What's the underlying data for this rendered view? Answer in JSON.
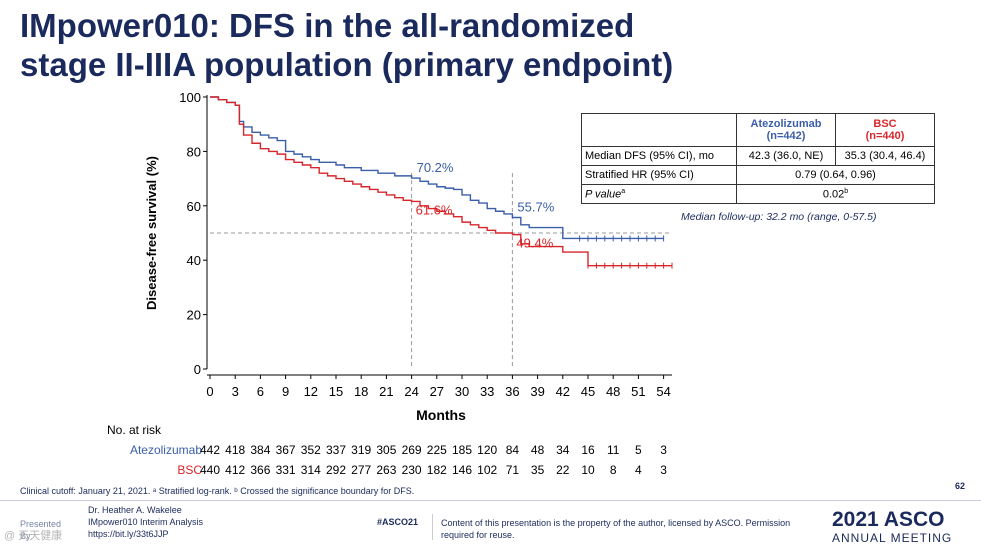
{
  "title": {
    "line1": "IMpower010: DFS in the all-randomized",
    "line2": "stage II-IIIA population (primary endpoint)"
  },
  "chart_data": {
    "type": "line",
    "xlabel": "Months",
    "ylabel": "Disease-free survival (%)",
    "xlim": [
      0,
      55
    ],
    "ylim": [
      0,
      100
    ],
    "x_ticks": [
      0,
      3,
      6,
      9,
      12,
      15,
      18,
      21,
      24,
      27,
      30,
      33,
      36,
      39,
      42,
      45,
      48,
      51,
      54
    ],
    "y_ticks": [
      0,
      20,
      40,
      60,
      80,
      100
    ],
    "reference_line_y": 50,
    "reference_lines_x": [
      24,
      36
    ],
    "colors": {
      "atezolizumab": "#3b5ea9",
      "bsc": "#d7262b",
      "grid": "#999999"
    },
    "series": [
      {
        "name": "Atezolizumab",
        "x": [
          0,
          1,
          2,
          3,
          3.5,
          4,
          5,
          6,
          7,
          8,
          9,
          10,
          11,
          12,
          13,
          14,
          15,
          16,
          17,
          18,
          19,
          20,
          21,
          22,
          23,
          24,
          25,
          26,
          27,
          28,
          29,
          30,
          31,
          32,
          33,
          34,
          35,
          36,
          37,
          38,
          39,
          40,
          41,
          42,
          43,
          44,
          45,
          46,
          47,
          48,
          49,
          50,
          51,
          52,
          53,
          54
        ],
        "y": [
          100,
          99,
          98,
          97,
          91,
          89,
          87,
          86,
          85,
          84,
          80,
          79,
          78,
          77,
          76,
          76,
          75,
          74,
          74,
          73,
          73,
          72,
          72,
          71,
          71,
          70.2,
          69,
          68,
          67,
          66.5,
          66,
          64,
          62,
          61,
          59,
          58,
          57,
          55.7,
          53,
          52,
          52,
          52,
          52,
          48,
          48,
          48,
          48,
          48,
          48,
          48,
          48,
          48,
          48,
          48,
          48,
          48
        ]
      },
      {
        "name": "BSC",
        "x": [
          0,
          1,
          2,
          3,
          3.5,
          4,
          5,
          6,
          7,
          8,
          9,
          10,
          11,
          12,
          13,
          14,
          15,
          16,
          17,
          18,
          19,
          20,
          21,
          22,
          23,
          24,
          25,
          26,
          27,
          28,
          29,
          30,
          31,
          32,
          33,
          34,
          35,
          36,
          37,
          38,
          39,
          40,
          41,
          42,
          43,
          44,
          45,
          46,
          47,
          48,
          49,
          50,
          51,
          52,
          53,
          54,
          55
        ],
        "y": [
          100,
          99,
          98,
          97,
          90,
          86,
          83,
          81,
          80,
          79,
          77,
          76,
          75,
          74,
          72,
          71,
          70,
          69,
          68,
          67,
          66,
          65,
          64,
          63,
          62,
          61.6,
          60,
          59,
          58,
          57,
          56,
          54,
          53,
          52,
          51,
          50,
          50,
          49.4,
          46,
          45,
          45,
          45,
          45,
          43,
          43,
          43,
          38,
          38,
          38,
          38,
          38,
          38,
          38,
          38,
          38,
          38,
          38
        ]
      }
    ],
    "annotations": [
      {
        "text": "70.2%",
        "series": "Atezolizumab",
        "x": 24,
        "y": 70.2
      },
      {
        "text": "55.7%",
        "series": "Atezolizumab",
        "x": 36,
        "y": 55.7
      },
      {
        "text": "61.6%",
        "series": "BSC",
        "x": 24,
        "y": 61.6
      },
      {
        "text": "49.4%",
        "series": "BSC",
        "x": 36,
        "y": 49.4
      }
    ]
  },
  "table": {
    "col_atezo": "Atezolizumab",
    "col_atezo_n": "(n=442)",
    "col_bsc": "BSC",
    "col_bsc_n": "(n=440)",
    "row1_label": "Median DFS (95% CI), mo",
    "row1_atezo": "42.3 (36.0, NE)",
    "row1_bsc": "35.3 (30.4, 46.4)",
    "row2_label": "Stratified HR (95% CI)",
    "row2_value": "0.79 (0.64, 0.96)",
    "row3_label_main": "P value",
    "row3_label_sup": "a",
    "row3_value_main": "0.02",
    "row3_value_sup": "b"
  },
  "followup": "Median follow-up: 32.2 mo (range, 0-57.5)",
  "at_risk": {
    "title": "No. at risk",
    "atezo_label": "Atezolizumab",
    "atezo_values": [
      "442",
      "418",
      "384",
      "367",
      "352",
      "337",
      "319",
      "305",
      "269",
      "225",
      "185",
      "120",
      "84",
      "48",
      "34",
      "16",
      "11",
      "5",
      "3"
    ],
    "bsc_label": "BSC",
    "bsc_values": [
      "440",
      "412",
      "366",
      "331",
      "314",
      "292",
      "277",
      "263",
      "230",
      "182",
      "146",
      "102",
      "71",
      "35",
      "22",
      "10",
      "8",
      "4",
      "3"
    ]
  },
  "footnote": "Clinical cutoff: January 21, 2021. ᵃ Stratified log-rank. ᵇ Crossed the significance boundary for DFS.",
  "page_number": "62",
  "presenter": {
    "prefix": "Presented By:",
    "name": "Dr. Heather A. Wakelee",
    "subject": "IMpower010 Interim Analysis",
    "link": "https://bit.ly/33t6JJP"
  },
  "hashtag": "#ASCO21",
  "rights": "Content of this presentation is the property of the author, licensed by ASCO. Permission required for reuse.",
  "logo": {
    "year": "2021",
    "brand": "ASCO",
    "tagline": "ANNUAL MEETING"
  },
  "watermark": "@ 天天健康"
}
